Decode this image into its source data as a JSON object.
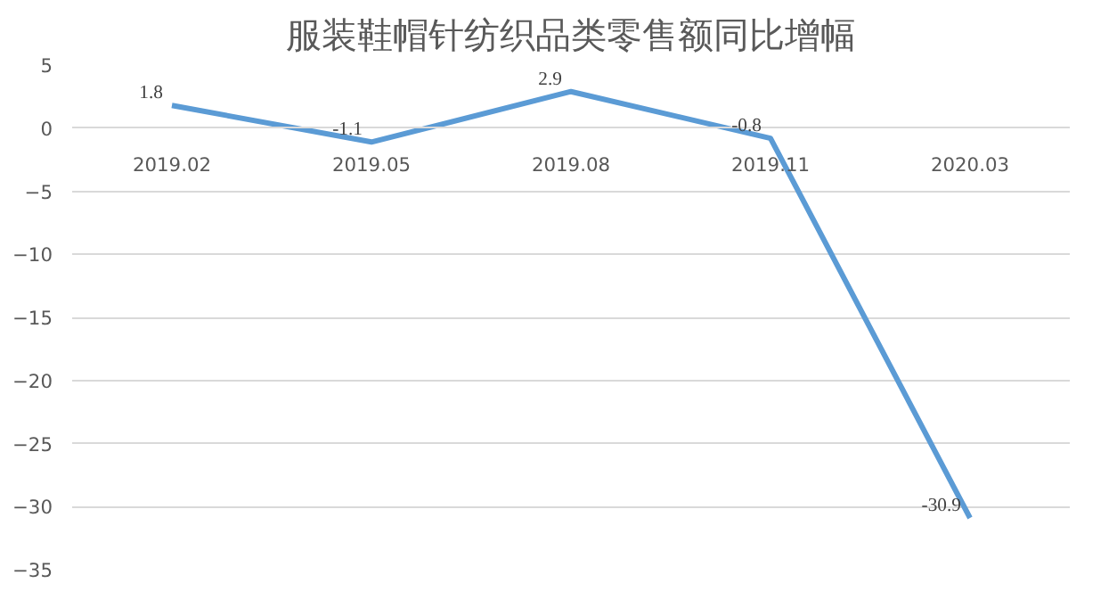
{
  "chart_data": {
    "type": "line",
    "title": "服装鞋帽针纺织品类零售额同比增幅",
    "categories": [
      "2019.02",
      "2019.05",
      "2019.08",
      "2019.11",
      "2020.03"
    ],
    "series": [
      {
        "color": "#5b9bd5",
        "values": [
          1.8,
          -1.1,
          2.9,
          -0.8,
          -30.9
        ]
      }
    ],
    "ylim": [
      -35,
      5
    ],
    "yticks": [
      5,
      0,
      -5,
      -10,
      -15,
      -20,
      -25,
      -30,
      -35
    ],
    "grid": "y",
    "data_labels": true,
    "marker": "none",
    "line_style": "solid"
  }
}
